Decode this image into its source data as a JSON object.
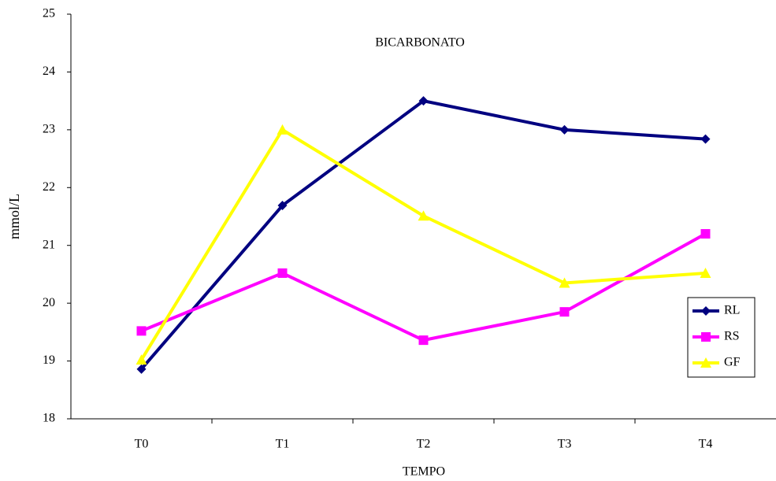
{
  "chart_data": {
    "type": "line",
    "title": "BICARBONATO",
    "x_label": "TEMPO",
    "y_label": "mmol/L",
    "categories": [
      "T0",
      "T1",
      "T2",
      "T3",
      "T4"
    ],
    "series": [
      {
        "name": "RL",
        "color": "#000080",
        "marker": "diamond",
        "values": [
          18.86,
          21.69,
          23.5,
          23.0,
          22.84
        ]
      },
      {
        "name": "RS",
        "color": "#FF00FF",
        "marker": "square",
        "values": [
          19.52,
          20.52,
          19.36,
          19.85,
          21.2
        ]
      },
      {
        "name": "GF",
        "color": "#FFFF00",
        "marker": "triangle",
        "values": [
          19.02,
          23.0,
          21.51,
          20.35,
          20.52
        ]
      }
    ],
    "ylim": [
      18,
      25
    ],
    "yticks": [
      18,
      19,
      20,
      21,
      22,
      23,
      24,
      25
    ],
    "grid": false,
    "legend": "right"
  }
}
